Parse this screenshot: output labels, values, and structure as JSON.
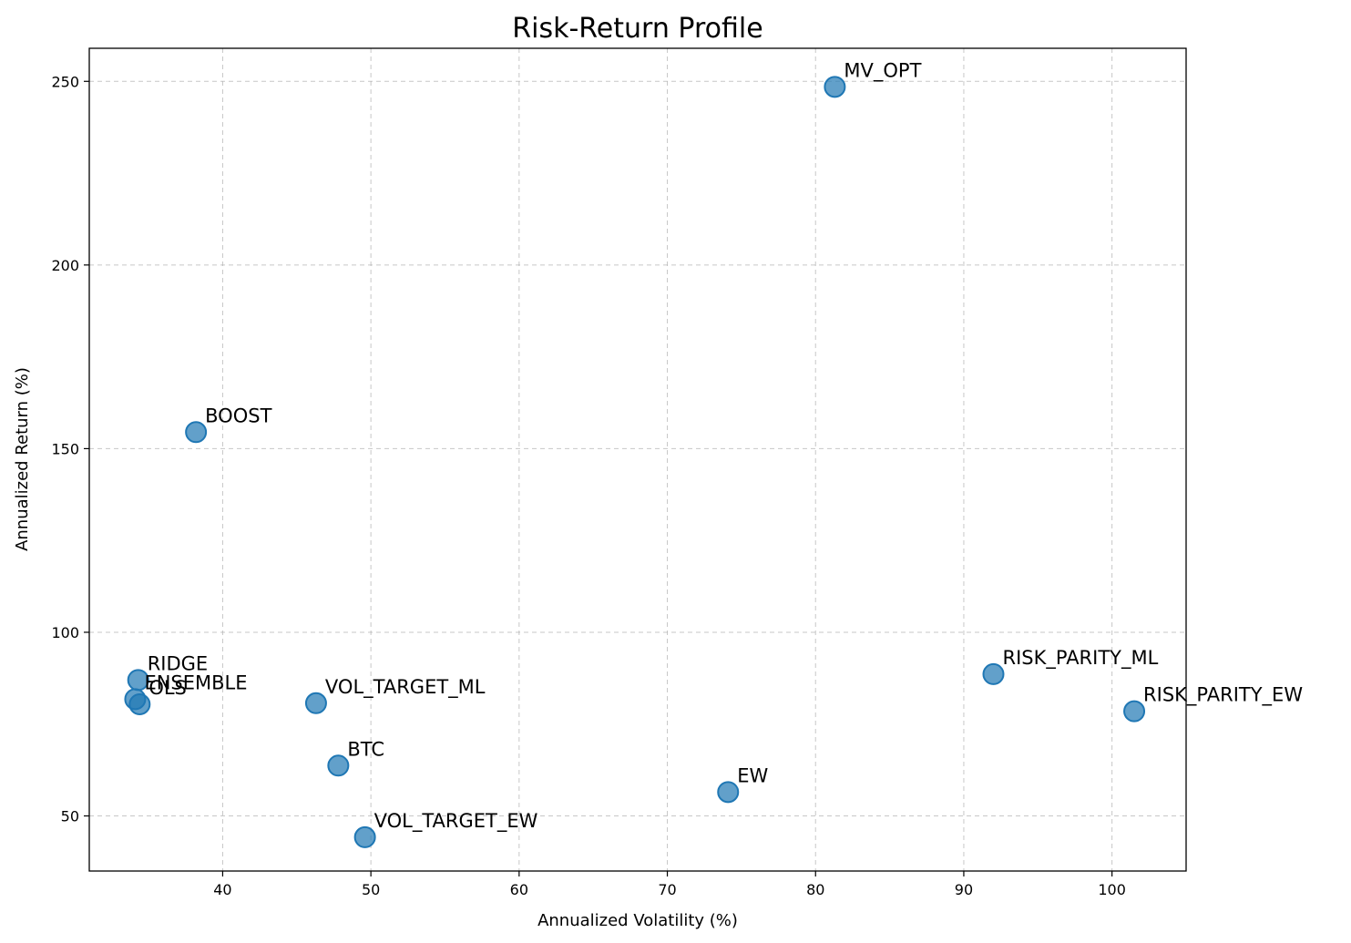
{
  "chart_data": {
    "type": "scatter",
    "title": "Risk-Return Profile",
    "xlabel": "Annualized Volatility (%)",
    "ylabel": "Annualized Return (%)",
    "xlim": [
      31,
      105
    ],
    "ylim": [
      35,
      259
    ],
    "xticks": [
      40,
      50,
      60,
      70,
      80,
      90,
      100
    ],
    "yticks": [
      50,
      100,
      150,
      200,
      250
    ],
    "grid": true,
    "point_color": "#1f77b4",
    "points": [
      {
        "label": "MV_OPT",
        "x": 81.3,
        "y": 248.5
      },
      {
        "label": "BOOST",
        "x": 38.2,
        "y": 154.5
      },
      {
        "label": "RIDGE",
        "x": 34.3,
        "y": 87.0
      },
      {
        "label": "ENSEMBLE",
        "x": 34.1,
        "y": 81.8
      },
      {
        "label": "OLS",
        "x": 34.4,
        "y": 80.4
      },
      {
        "label": "VOL_TARGET_ML",
        "x": 46.3,
        "y": 80.7
      },
      {
        "label": "BTC",
        "x": 47.8,
        "y": 63.7
      },
      {
        "label": "VOL_TARGET_EW",
        "x": 49.6,
        "y": 44.2
      },
      {
        "label": "EW",
        "x": 74.1,
        "y": 56.5
      },
      {
        "label": "RISK_PARITY_ML",
        "x": 92.0,
        "y": 88.6
      },
      {
        "label": "RISK_PARITY_EW",
        "x": 101.5,
        "y": 78.5
      }
    ]
  }
}
